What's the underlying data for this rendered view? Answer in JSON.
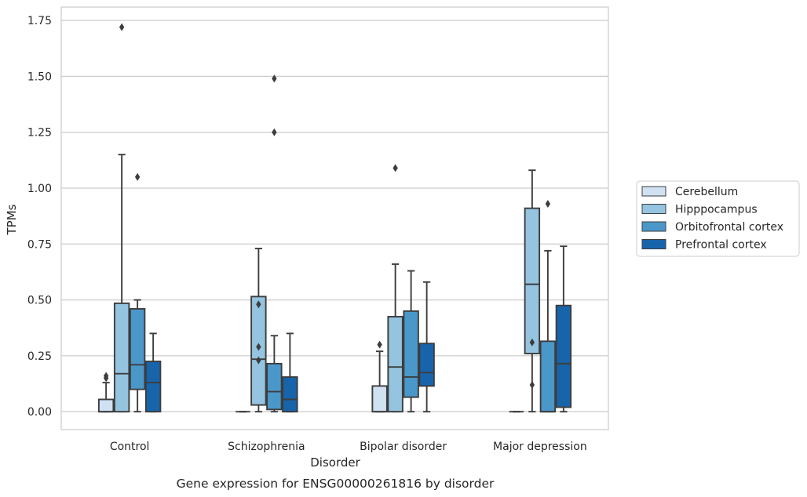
{
  "chart_data": {
    "type": "box",
    "title": "",
    "caption": "Gene expression for ENSG00000261816 by disorder",
    "xlabel": "Disorder",
    "ylabel": "TPMs",
    "ylim": [
      -0.08,
      1.81
    ],
    "yticks": [
      0.0,
      0.25,
      0.5,
      0.75,
      1.0,
      1.25,
      1.5,
      1.75
    ],
    "ytick_labels": [
      "0.00",
      "0.25",
      "0.50",
      "0.75",
      "1.00",
      "1.25",
      "1.50",
      "1.75"
    ],
    "grid": true,
    "legend_position": "right",
    "categories": [
      "Control",
      "Schizophrenia",
      "Bipolar disorder",
      "Major depression"
    ],
    "series": [
      {
        "name": "Cerebellum",
        "color": "#d0e1f2",
        "boxes": [
          {
            "whislo": 0.0,
            "q1": 0.0,
            "med": 0.0,
            "q3": 0.055,
            "whishi": 0.13,
            "fliers": [
              0.15,
              0.16
            ]
          },
          {
            "whislo": 0.0,
            "q1": 0.0,
            "med": 0.0,
            "q3": 0.0,
            "whishi": 0.0,
            "fliers": []
          },
          {
            "whislo": 0.0,
            "q1": 0.0,
            "med": 0.0,
            "q3": 0.115,
            "whishi": 0.27,
            "fliers": [
              0.3
            ]
          },
          {
            "whislo": 0.0,
            "q1": 0.0,
            "med": 0.0,
            "q3": 0.0,
            "whishi": 0.0,
            "fliers": []
          }
        ]
      },
      {
        "name": "Hipppocampus",
        "color": "#94c4df",
        "boxes": [
          {
            "whislo": 0.0,
            "q1": 0.0,
            "med": 0.17,
            "q3": 0.485,
            "whishi": 1.15,
            "fliers": [
              1.72
            ]
          },
          {
            "whislo": 0.0,
            "q1": 0.03,
            "med": 0.235,
            "q3": 0.515,
            "whishi": 0.73,
            "fliers": [
              0.23,
              0.29,
              0.48
            ]
          },
          {
            "whislo": 0.0,
            "q1": 0.0,
            "med": 0.2,
            "q3": 0.425,
            "whishi": 0.66,
            "fliers": [
              1.09
            ]
          },
          {
            "whislo": 0.0,
            "q1": 0.26,
            "med": 0.57,
            "q3": 0.91,
            "whishi": 1.08,
            "fliers": [
              0.12,
              0.31
            ]
          }
        ]
      },
      {
        "name": "Orbitofrontal cortex",
        "color": "#4a98c9",
        "boxes": [
          {
            "whislo": 0.0,
            "q1": 0.1,
            "med": 0.21,
            "q3": 0.46,
            "whishi": 0.5,
            "fliers": [
              1.05
            ]
          },
          {
            "whislo": 0.0,
            "q1": 0.01,
            "med": 0.09,
            "q3": 0.215,
            "whishi": 0.34,
            "fliers": [
              1.25,
              1.49
            ]
          },
          {
            "whislo": 0.0,
            "q1": 0.065,
            "med": 0.155,
            "q3": 0.45,
            "whishi": 0.63,
            "fliers": []
          },
          {
            "whislo": 0.0,
            "q1": 0.0,
            "med": 0.0,
            "q3": 0.315,
            "whishi": 0.72,
            "fliers": [
              0.93
            ]
          }
        ]
      },
      {
        "name": "Prefrontal cortex",
        "color": "#1764ab",
        "boxes": [
          {
            "whislo": 0.0,
            "q1": 0.0,
            "med": 0.13,
            "q3": 0.225,
            "whishi": 0.35,
            "fliers": []
          },
          {
            "whislo": 0.0,
            "q1": 0.0,
            "med": 0.055,
            "q3": 0.155,
            "whishi": 0.35,
            "fliers": []
          },
          {
            "whislo": 0.0,
            "q1": 0.115,
            "med": 0.175,
            "q3": 0.305,
            "whishi": 0.58,
            "fliers": []
          },
          {
            "whislo": 0.0,
            "q1": 0.02,
            "med": 0.215,
            "q3": 0.475,
            "whishi": 0.74,
            "fliers": []
          }
        ]
      }
    ]
  }
}
